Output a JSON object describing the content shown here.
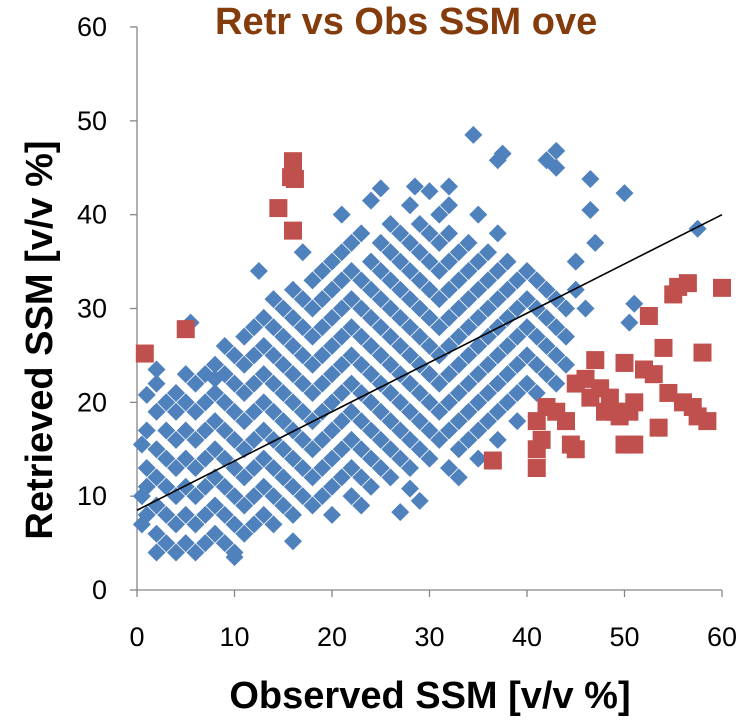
{
  "chart_data": {
    "type": "scatter",
    "title": "Retr vs Obs SSM ove",
    "x_label": "Observed SSM [v/v %]",
    "y_label": "Retrieved SSM [v/v %]",
    "xlim": [
      0,
      60
    ],
    "xticks": [
      0,
      10,
      20,
      30,
      40,
      50,
      60
    ],
    "ylim": [
      0,
      60
    ],
    "yticks": [
      0,
      10,
      20,
      30,
      40,
      50,
      60
    ],
    "grid": false,
    "series": [
      {
        "color": "#4f81bd",
        "marker": "diamond",
        "x": [
          1,
          1,
          1,
          1,
          2,
          2,
          2,
          2,
          2,
          2,
          3,
          3,
          3,
          3,
          3,
          3,
          4,
          4,
          4,
          4,
          4,
          4,
          4,
          5,
          5,
          5,
          5,
          5,
          5,
          5,
          6,
          6,
          6,
          6,
          6,
          6,
          6,
          7,
          7,
          7,
          7,
          7,
          7,
          7,
          8,
          8,
          8,
          8,
          8,
          8,
          8,
          9,
          9,
          9,
          9,
          9,
          9,
          9,
          9,
          10,
          10,
          10,
          10,
          10,
          10,
          10,
          10,
          11,
          11,
          11,
          11,
          11,
          11,
          11,
          11,
          12,
          12,
          12,
          12,
          12,
          12,
          12,
          12,
          13,
          13,
          13,
          13,
          13,
          13,
          13,
          13,
          14,
          14,
          14,
          14,
          14,
          14,
          14,
          14,
          14,
          15,
          15,
          15,
          15,
          15,
          15,
          15,
          15,
          16,
          16,
          16,
          16,
          16,
          16,
          16,
          16,
          16,
          17,
          17,
          17,
          17,
          17,
          17,
          17,
          17,
          17,
          18,
          18,
          18,
          18,
          18,
          18,
          18,
          18,
          18,
          19,
          19,
          19,
          19,
          19,
          19,
          19,
          19,
          19,
          20,
          20,
          20,
          20,
          20,
          20,
          20,
          20,
          20,
          20,
          21,
          21,
          21,
          21,
          21,
          21,
          21,
          21,
          21,
          21,
          22,
          22,
          22,
          22,
          22,
          22,
          22,
          22,
          22,
          22,
          23,
          23,
          23,
          23,
          23,
          23,
          23,
          23,
          23,
          23,
          24,
          24,
          24,
          24,
          24,
          24,
          24,
          24,
          24,
          25,
          25,
          25,
          25,
          25,
          25,
          25,
          25,
          25,
          26,
          26,
          26,
          26,
          26,
          26,
          26,
          26,
          26,
          26,
          27,
          27,
          27,
          27,
          27,
          27,
          27,
          27,
          27,
          28,
          28,
          28,
          28,
          28,
          28,
          28,
          28,
          28,
          28,
          29,
          29,
          29,
          29,
          29,
          29,
          29,
          29,
          29,
          30,
          30,
          30,
          30,
          30,
          30,
          30,
          30,
          30,
          31,
          31,
          31,
          31,
          31,
          31,
          31,
          31,
          31,
          32,
          32,
          32,
          32,
          32,
          32,
          32,
          32,
          32,
          32,
          33,
          33,
          33,
          33,
          33,
          33,
          33,
          33,
          33,
          34,
          34,
          34,
          34,
          34,
          34,
          34,
          34,
          35,
          35,
          35,
          35,
          35,
          35,
          35,
          35,
          35,
          36,
          36,
          36,
          36,
          36,
          36,
          36,
          37,
          37,
          37,
          37,
          37,
          37,
          37,
          37,
          38,
          38,
          38,
          38,
          38,
          38,
          39,
          39,
          39,
          39,
          39,
          39,
          40,
          40,
          40,
          40,
          40,
          41,
          41,
          41,
          41,
          41,
          42,
          42,
          42,
          42,
          43,
          43,
          43,
          43,
          44,
          44,
          44,
          34.5,
          37.5,
          37,
          42,
          43,
          43,
          46.5,
          50,
          46.5,
          47,
          57.5,
          51,
          50.5,
          0.5,
          0.5,
          0.5,
          2,
          10,
          16,
          27,
          29,
          28,
          8,
          5.5,
          12.5,
          24,
          25,
          28.5,
          30,
          32,
          2,
          1,
          45,
          45,
          46
        ],
        "values": [
          8,
          11,
          13,
          17,
          6,
          9,
          12,
          15,
          19,
          22,
          5,
          8,
          11,
          14,
          17,
          20,
          4,
          7,
          10,
          13,
          16,
          19,
          21,
          5,
          8,
          11,
          14,
          17,
          20,
          23,
          4,
          7,
          10,
          13,
          16,
          19,
          22,
          5,
          8,
          11,
          14,
          17,
          20,
          23,
          6,
          9,
          12,
          15,
          18,
          21,
          24,
          5,
          8,
          11,
          14,
          17,
          20,
          23,
          26,
          4,
          7,
          10,
          13,
          16,
          19,
          22,
          25,
          6,
          9,
          12,
          15,
          18,
          21,
          24,
          27,
          7,
          10,
          13,
          16,
          19,
          22,
          25,
          28,
          8,
          11,
          14,
          17,
          20,
          23,
          26,
          29,
          7,
          10,
          13,
          16,
          19,
          22,
          25,
          28,
          31,
          9,
          12,
          15,
          18,
          21,
          24,
          27,
          30,
          8,
          11,
          14,
          17,
          20,
          23,
          26,
          29,
          32,
          10,
          13,
          16,
          19,
          22,
          25,
          28,
          31,
          36,
          9,
          12,
          15,
          18,
          21,
          24,
          27,
          30,
          33,
          10,
          13,
          16,
          19,
          22,
          25,
          28,
          31,
          34,
          8,
          11,
          14,
          17,
          20,
          23,
          26,
          29,
          32,
          35,
          12,
          15,
          18,
          21,
          24,
          27,
          30,
          33,
          36,
          40,
          10,
          13,
          16,
          19,
          22,
          25,
          28,
          31,
          34,
          37,
          9,
          12,
          15,
          18,
          21,
          24,
          27,
          30,
          33,
          38,
          11,
          14,
          17,
          20,
          23,
          26,
          29,
          32,
          35,
          13,
          16,
          19,
          22,
          25,
          28,
          31,
          34,
          37,
          12,
          15,
          18,
          21,
          24,
          27,
          30,
          33,
          36,
          39,
          14,
          17,
          20,
          23,
          26,
          29,
          32,
          35,
          38,
          13,
          16,
          19,
          22,
          25,
          28,
          31,
          34,
          37,
          41,
          15,
          18,
          21,
          24,
          27,
          30,
          33,
          36,
          39,
          14,
          17,
          20,
          23,
          26,
          29,
          32,
          35,
          38,
          16,
          19,
          22,
          25,
          28,
          31,
          34,
          37,
          40,
          13,
          17,
          20,
          23,
          26,
          29,
          32,
          35,
          38,
          41,
          12,
          15,
          18,
          21,
          24,
          27,
          30,
          33,
          36,
          16,
          19,
          22,
          25,
          28,
          31,
          34,
          37,
          14,
          17,
          20,
          23,
          26,
          29,
          32,
          35,
          40,
          18,
          21,
          24,
          27,
          30,
          33,
          36,
          16,
          19,
          22,
          25,
          28,
          31,
          34,
          38,
          20,
          23,
          26,
          29,
          32,
          35,
          18,
          21,
          24,
          27,
          30,
          33,
          22,
          25,
          28,
          31,
          34,
          21,
          24,
          27,
          30,
          33,
          23,
          26,
          29,
          32,
          22,
          25,
          28,
          31,
          24,
          27,
          30,
          48.5,
          46.5,
          45.8,
          45.8,
          46.8,
          45,
          43.8,
          42.3,
          40.5,
          37,
          38.5,
          30.5,
          28.5,
          15.5,
          10,
          7,
          4,
          3.5,
          5.2,
          8.3,
          9.5,
          10.8,
          22.5,
          28.5,
          34,
          41.5,
          42.8,
          43,
          42.5,
          43,
          23.5,
          20.8,
          35,
          32,
          30
        ]
      },
      {
        "color": "#c0504d",
        "marker": "square",
        "x": [
          0.8,
          5,
          14.5,
          16,
          15.8,
          16.2,
          16,
          36.5,
          41,
          41,
          41,
          41.5,
          42,
          43,
          44,
          44.5,
          45,
          45,
          46,
          46.5,
          47,
          47.5,
          48,
          48.5,
          49,
          49.5,
          50,
          50,
          50.5,
          51,
          51,
          52,
          52.5,
          53,
          53.5,
          54,
          54.5,
          55,
          55.5,
          56.5,
          56,
          57,
          57.5,
          58,
          58.5,
          60
        ],
        "values": [
          25.2,
          27.8,
          40.7,
          45.7,
          44,
          43.8,
          38.3,
          13.8,
          18,
          15,
          13,
          16,
          19.5,
          19,
          18,
          15.5,
          15,
          22,
          22.5,
          20.5,
          24.5,
          21.5,
          19,
          20.5,
          19,
          18.5,
          15.5,
          24.2,
          19,
          15.5,
          20,
          23.5,
          29.2,
          23,
          17.3,
          25.8,
          21,
          31.5,
          32.3,
          32.7,
          20,
          19.5,
          18.5,
          25.3,
          18,
          32.2
        ]
      }
    ],
    "trendline": {
      "color": "#000000",
      "x": [
        0,
        60
      ],
      "values": [
        8.5,
        40
      ]
    }
  }
}
